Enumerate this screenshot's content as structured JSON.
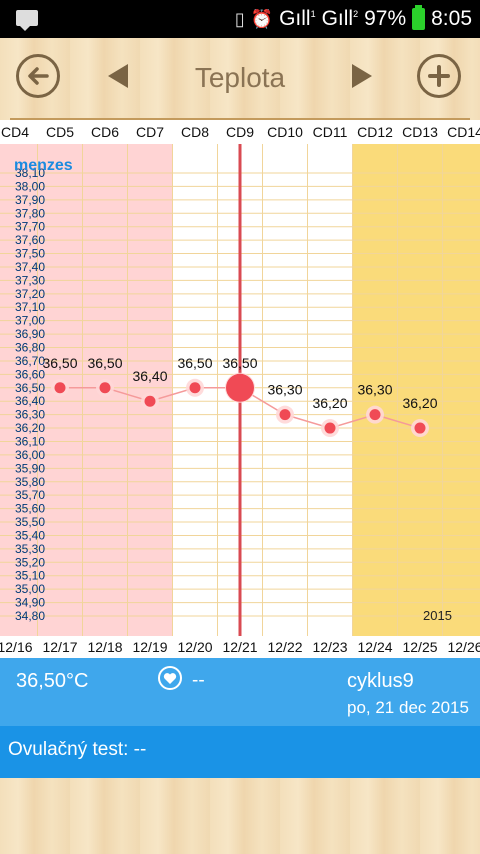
{
  "status_bar": {
    "battery": "97%",
    "time": "8:05",
    "signal_1": "Gıll",
    "signal_1_sup": "1",
    "signal_2": "Gıll",
    "signal_2_sup": "2",
    "icons": [
      "notification-icon",
      "vibrate-icon",
      "alarm-icon",
      "signal-icon",
      "battery-icon"
    ]
  },
  "toolbar": {
    "title": "Teplota",
    "back_icon": "back-arrow-icon",
    "prev_icon": "prev-triangle-icon",
    "next_icon": "next-triangle-icon",
    "add_icon": "plus-icon"
  },
  "chart_data": {
    "type": "line",
    "title": "",
    "legend_text": "menzes",
    "year": "2015",
    "cycle_days": [
      "CD4",
      "CD5",
      "CD6",
      "CD7",
      "CD8",
      "CD9",
      "CD10",
      "CD11",
      "CD12",
      "CD13",
      "CD14"
    ],
    "dates": [
      "12/16",
      "12/17",
      "12/18",
      "12/19",
      "12/20",
      "12/21",
      "12/22",
      "12/23",
      "12/24",
      "12/25",
      "12/26"
    ],
    "y_ticks": [
      "38,10",
      "38,00",
      "37,90",
      "37,80",
      "37,70",
      "37,60",
      "37,50",
      "37,40",
      "37,30",
      "37,20",
      "37,10",
      "37,00",
      "36,90",
      "36,80",
      "36,70",
      "36,60",
      "36,50",
      "36,40",
      "36,30",
      "36,20",
      "36,10",
      "36,00",
      "35,90",
      "35,80",
      "35,70",
      "35,60",
      "35,50",
      "35,40",
      "35,30",
      "35,20",
      "35,10",
      "35,00",
      "34,90",
      "34,80"
    ],
    "ylim": [
      34.8,
      38.1
    ],
    "period_range": [
      "12/16",
      "12/20"
    ],
    "fertile_range": [
      "12/24",
      "12/26"
    ],
    "selected": "12/21",
    "series": [
      {
        "x": [
          "12/17",
          "12/18",
          "12/19",
          "12/20",
          "12/21",
          "12/22",
          "12/23",
          "12/24",
          "12/25"
        ],
        "values": [
          36.5,
          36.5,
          36.4,
          36.5,
          36.5,
          36.3,
          36.2,
          36.3,
          36.2
        ],
        "labels": [
          "36,50",
          "36,50",
          "36,40",
          "36,50",
          "36,50",
          "36,30",
          "36,20",
          "36,30",
          "36,20"
        ]
      }
    ],
    "colors": {
      "period": "#ffd4d4",
      "fertile": "#fadb7a",
      "grid": "#f1d59a",
      "line": "#f59a9a",
      "point": "#f04a55",
      "selected_line": "#d94a52",
      "ytick": "#003a78",
      "legend": "#1a8be0"
    }
  },
  "info": {
    "temperature": "36,50°C",
    "heart_icon": "heart-icon",
    "heart_value": "--",
    "cycle": "cyklus9",
    "date": "po, 21 dec 2015"
  },
  "ovulation": {
    "label": "Ovulačný test: --"
  }
}
